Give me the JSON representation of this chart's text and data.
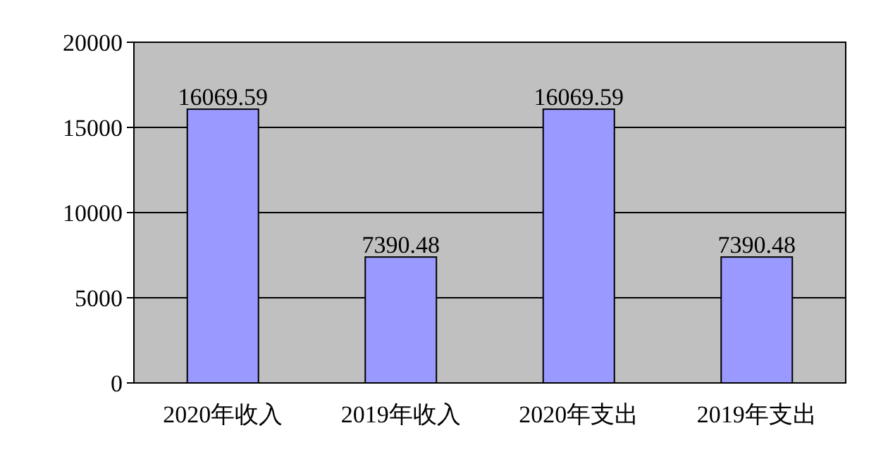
{
  "chart_data": {
    "type": "bar",
    "categories": [
      "2020年收入",
      "2019年收入",
      "2020年支出",
      "2019年支出"
    ],
    "values": [
      16069.59,
      7390.48,
      16069.59,
      7390.48
    ],
    "color": "#9999ff",
    "ylim": [
      0,
      20000
    ],
    "yticks": [
      0,
      5000,
      10000,
      15000,
      20000
    ],
    "grid": "y",
    "data_labels": true
  }
}
